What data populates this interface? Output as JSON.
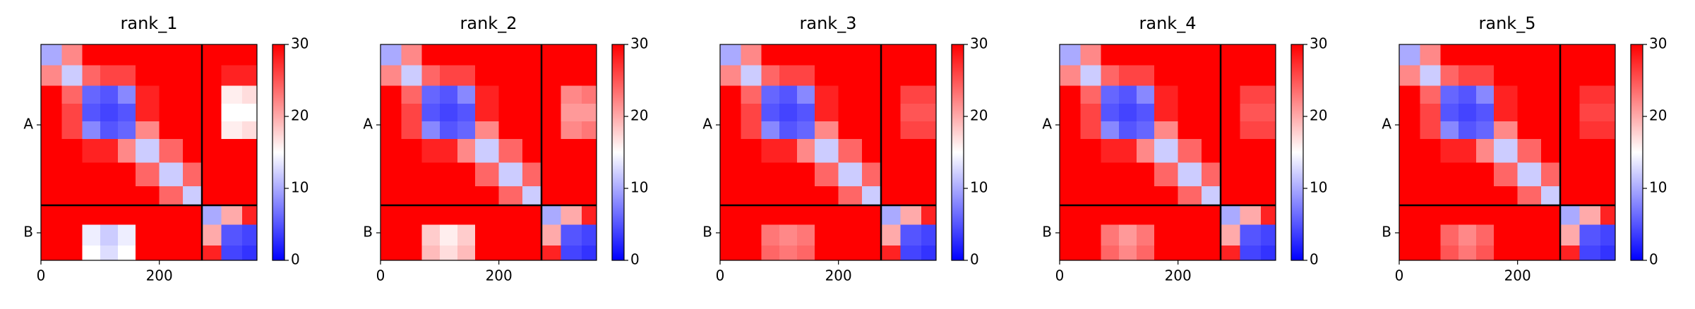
{
  "chart_data": [
    {
      "type": "heatmap",
      "title": "rank_1",
      "colormap": "bwr",
      "clim": [
        0,
        30
      ],
      "cticks": [
        0,
        10,
        20,
        30
      ],
      "xlim": [
        0,
        365
      ],
      "xticks": [
        0,
        200
      ],
      "ylim": [
        365,
        0
      ],
      "yticks": [
        {
          "value": 136,
          "label": "A"
        },
        {
          "value": 318.5,
          "label": "B"
        }
      ],
      "boundaries": [
        272
      ],
      "edges": [
        0,
        35,
        70,
        100,
        130,
        160,
        200,
        240,
        272,
        305,
        340,
        365
      ],
      "values": [
        [
          10,
          22,
          30,
          30,
          30,
          30,
          30,
          30,
          30,
          30,
          30
        ],
        [
          22,
          12,
          24,
          26,
          26,
          30,
          30,
          30,
          30,
          28,
          28
        ],
        [
          30,
          24,
          6,
          5,
          8,
          28,
          30,
          30,
          30,
          16,
          17
        ],
        [
          30,
          26,
          5,
          4,
          5,
          28,
          30,
          30,
          30,
          15,
          15
        ],
        [
          30,
          26,
          8,
          5,
          6,
          22,
          30,
          30,
          30,
          16,
          17
        ],
        [
          30,
          30,
          28,
          28,
          22,
          12,
          24,
          30,
          30,
          30,
          30
        ],
        [
          30,
          30,
          30,
          30,
          30,
          24,
          12,
          24,
          30,
          30,
          30
        ],
        [
          30,
          30,
          30,
          30,
          30,
          30,
          24,
          12,
          30,
          30,
          30
        ],
        [
          30,
          30,
          30,
          30,
          30,
          30,
          30,
          30,
          10,
          20,
          28
        ],
        [
          30,
          30,
          14,
          12,
          14,
          30,
          30,
          30,
          20,
          5,
          4
        ],
        [
          30,
          30,
          15,
          13,
          15,
          30,
          30,
          30,
          28,
          4,
          3
        ]
      ]
    },
    {
      "type": "heatmap",
      "title": "rank_2",
      "colormap": "bwr",
      "clim": [
        0,
        30
      ],
      "cticks": [
        0,
        10,
        20,
        30
      ],
      "xlim": [
        0,
        365
      ],
      "xticks": [
        0,
        200
      ],
      "ylim": [
        365,
        0
      ],
      "yticks": [
        {
          "value": 136,
          "label": "A"
        },
        {
          "value": 318.5,
          "label": "B"
        }
      ],
      "boundaries": [
        272
      ],
      "edges": [
        0,
        35,
        70,
        100,
        130,
        160,
        200,
        240,
        272,
        305,
        340,
        365
      ],
      "values": [
        [
          10,
          22,
          30,
          30,
          30,
          30,
          30,
          30,
          30,
          30,
          30
        ],
        [
          22,
          12,
          24,
          26,
          26,
          30,
          30,
          30,
          30,
          30,
          30
        ],
        [
          30,
          24,
          6,
          5,
          8,
          28,
          30,
          30,
          30,
          22,
          23
        ],
        [
          30,
          26,
          5,
          4,
          5,
          28,
          30,
          30,
          30,
          21,
          21
        ],
        [
          30,
          26,
          8,
          5,
          6,
          22,
          30,
          30,
          30,
          22,
          23
        ],
        [
          30,
          30,
          28,
          28,
          22,
          12,
          24,
          30,
          30,
          30,
          30
        ],
        [
          30,
          30,
          30,
          30,
          30,
          24,
          12,
          24,
          30,
          30,
          30
        ],
        [
          30,
          30,
          30,
          30,
          30,
          30,
          24,
          12,
          30,
          30,
          30
        ],
        [
          30,
          30,
          30,
          30,
          30,
          30,
          30,
          30,
          10,
          20,
          28
        ],
        [
          30,
          30,
          18,
          16,
          18,
          30,
          30,
          30,
          20,
          5,
          4
        ],
        [
          30,
          30,
          19,
          17,
          19,
          30,
          30,
          30,
          28,
          4,
          3
        ]
      ]
    },
    {
      "type": "heatmap",
      "title": "rank_3",
      "colormap": "bwr",
      "clim": [
        0,
        30
      ],
      "cticks": [
        0,
        10,
        20,
        30
      ],
      "xlim": [
        0,
        365
      ],
      "xticks": [
        0,
        200
      ],
      "ylim": [
        365,
        0
      ],
      "yticks": [
        {
          "value": 136,
          "label": "A"
        },
        {
          "value": 318.5,
          "label": "B"
        }
      ],
      "boundaries": [
        272
      ],
      "edges": [
        0,
        35,
        70,
        100,
        130,
        160,
        200,
        240,
        272,
        305,
        340,
        365
      ],
      "values": [
        [
          10,
          22,
          30,
          30,
          30,
          30,
          30,
          30,
          30,
          30,
          30
        ],
        [
          22,
          12,
          24,
          26,
          26,
          30,
          30,
          30,
          30,
          30,
          30
        ],
        [
          30,
          24,
          6,
          5,
          8,
          28,
          30,
          30,
          30,
          26,
          26
        ],
        [
          30,
          26,
          5,
          4,
          5,
          28,
          30,
          30,
          30,
          25,
          25
        ],
        [
          30,
          26,
          8,
          5,
          6,
          22,
          30,
          30,
          30,
          26,
          26
        ],
        [
          30,
          30,
          28,
          28,
          22,
          12,
          24,
          30,
          30,
          30,
          30
        ],
        [
          30,
          30,
          30,
          30,
          30,
          24,
          12,
          24,
          30,
          30,
          30
        ],
        [
          30,
          30,
          30,
          30,
          30,
          30,
          24,
          12,
          30,
          30,
          30
        ],
        [
          30,
          30,
          30,
          30,
          30,
          30,
          30,
          30,
          10,
          20,
          28
        ],
        [
          30,
          30,
          23,
          22,
          23,
          30,
          30,
          30,
          20,
          5,
          4
        ],
        [
          30,
          30,
          24,
          23,
          24,
          30,
          30,
          30,
          28,
          4,
          3
        ]
      ]
    },
    {
      "type": "heatmap",
      "title": "rank_4",
      "colormap": "bwr",
      "clim": [
        0,
        30
      ],
      "cticks": [
        0,
        10,
        20,
        30
      ],
      "xlim": [
        0,
        365
      ],
      "xticks": [
        0,
        200
      ],
      "ylim": [
        365,
        0
      ],
      "yticks": [
        {
          "value": 136,
          "label": "A"
        },
        {
          "value": 318.5,
          "label": "B"
        }
      ],
      "boundaries": [
        272
      ],
      "edges": [
        0,
        35,
        70,
        100,
        130,
        160,
        200,
        240,
        272,
        305,
        340,
        365
      ],
      "values": [
        [
          10,
          22,
          30,
          30,
          30,
          30,
          30,
          30,
          30,
          30,
          30
        ],
        [
          22,
          12,
          24,
          26,
          26,
          30,
          30,
          30,
          30,
          30,
          30
        ],
        [
          30,
          24,
          6,
          5,
          8,
          28,
          30,
          30,
          30,
          26,
          26
        ],
        [
          30,
          26,
          5,
          4,
          5,
          28,
          30,
          30,
          30,
          25,
          25
        ],
        [
          30,
          26,
          8,
          5,
          6,
          22,
          30,
          30,
          30,
          26,
          26
        ],
        [
          30,
          30,
          28,
          28,
          22,
          12,
          24,
          30,
          30,
          30,
          30
        ],
        [
          30,
          30,
          30,
          30,
          30,
          24,
          12,
          24,
          30,
          30,
          30
        ],
        [
          30,
          30,
          30,
          30,
          30,
          30,
          24,
          12,
          30,
          30,
          30
        ],
        [
          30,
          30,
          30,
          30,
          30,
          30,
          30,
          30,
          10,
          20,
          28
        ],
        [
          30,
          30,
          23,
          21,
          23,
          30,
          30,
          30,
          20,
          5,
          4
        ],
        [
          30,
          30,
          24,
          22,
          24,
          30,
          30,
          30,
          28,
          4,
          3
        ]
      ]
    },
    {
      "type": "heatmap",
      "title": "rank_5",
      "colormap": "bwr",
      "clim": [
        0,
        30
      ],
      "cticks": [
        0,
        10,
        20,
        30
      ],
      "xlim": [
        0,
        365
      ],
      "xticks": [
        0,
        200
      ],
      "ylim": [
        365,
        0
      ],
      "yticks": [
        {
          "value": 136,
          "label": "A"
        },
        {
          "value": 318.5,
          "label": "B"
        }
      ],
      "boundaries": [
        272
      ],
      "edges": [
        0,
        35,
        70,
        100,
        130,
        160,
        200,
        240,
        272,
        305,
        340,
        365
      ],
      "values": [
        [
          10,
          22,
          30,
          30,
          30,
          30,
          30,
          30,
          30,
          30,
          30
        ],
        [
          22,
          12,
          24,
          26,
          26,
          30,
          30,
          30,
          30,
          30,
          30
        ],
        [
          30,
          24,
          6,
          5,
          8,
          28,
          30,
          30,
          30,
          27,
          27
        ],
        [
          30,
          26,
          5,
          4,
          5,
          28,
          30,
          30,
          30,
          26,
          26
        ],
        [
          30,
          26,
          8,
          5,
          6,
          22,
          30,
          30,
          30,
          27,
          27
        ],
        [
          30,
          30,
          28,
          28,
          22,
          12,
          24,
          30,
          30,
          30,
          30
        ],
        [
          30,
          30,
          30,
          30,
          30,
          24,
          12,
          24,
          30,
          30,
          30
        ],
        [
          30,
          30,
          30,
          30,
          30,
          30,
          24,
          12,
          30,
          30,
          30
        ],
        [
          30,
          30,
          30,
          30,
          30,
          30,
          30,
          30,
          10,
          20,
          28
        ],
        [
          30,
          30,
          24,
          22,
          24,
          30,
          30,
          30,
          20,
          5,
          4
        ],
        [
          30,
          30,
          25,
          23,
          25,
          30,
          30,
          30,
          28,
          4,
          3
        ]
      ]
    }
  ]
}
